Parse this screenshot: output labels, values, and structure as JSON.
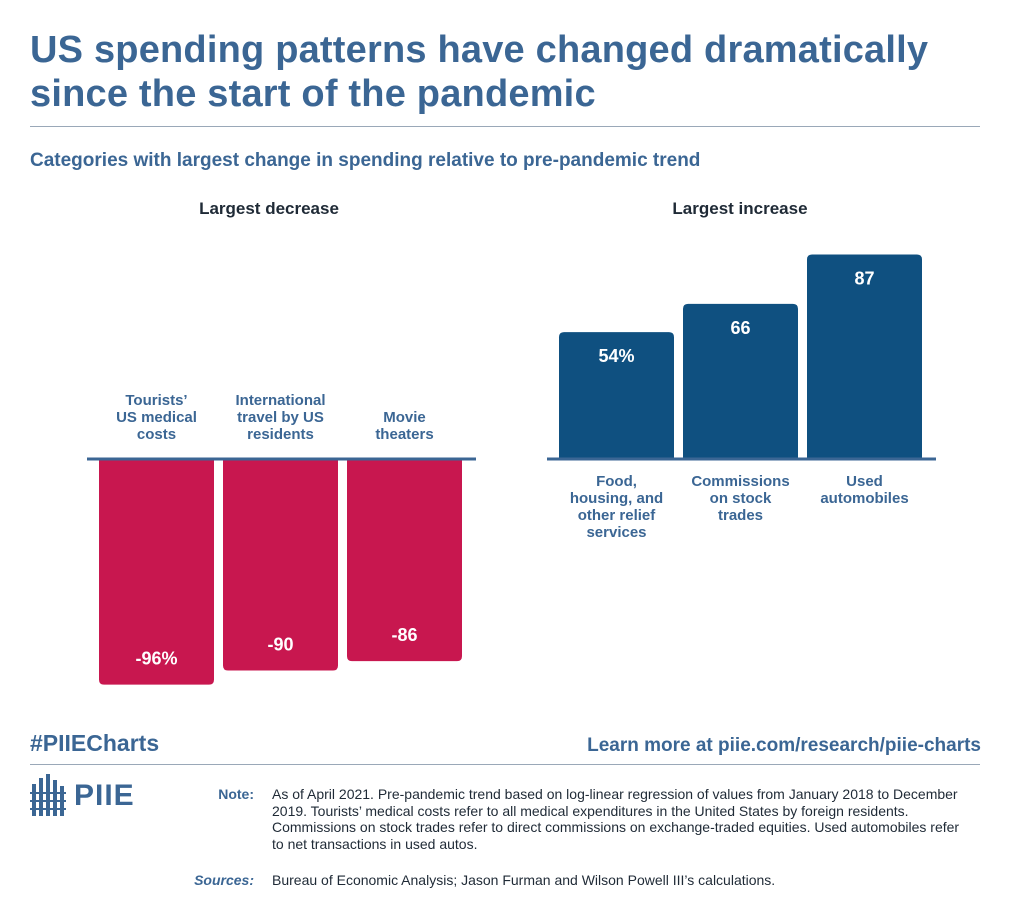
{
  "title": "US spending patterns have changed dramatically since the start of the pandemic",
  "subtitle": "Categories with largest change in spending relative to pre-pandemic trend",
  "colors": {
    "decrease": "#c8174f",
    "increase": "#0f5080",
    "text": "#3b6694",
    "axis": "#3b6694"
  },
  "chart_data": [
    {
      "type": "bar",
      "title": "Largest decrease",
      "categories": [
        "Tourists’ US medical costs",
        "International travel by US residents",
        "Movie theaters"
      ],
      "category_lines": [
        [
          "Tourists’",
          "US medical",
          "costs"
        ],
        [
          "International",
          "travel by US",
          "residents"
        ],
        [
          "Movie",
          "theaters"
        ]
      ],
      "values": [
        -96,
        -90,
        -86
      ],
      "value_labels": [
        "-96%",
        "-90",
        "-86"
      ],
      "unit": "%",
      "ylim": [
        -100,
        0
      ]
    },
    {
      "type": "bar",
      "title": "Largest increase",
      "categories": [
        "Food, housing, and other relief services",
        "Commissions on stock trades",
        "Used automobiles"
      ],
      "category_lines": [
        [
          "Food,",
          "housing, and",
          "other relief",
          "services"
        ],
        [
          "Commissions",
          "on stock",
          "trades"
        ],
        [
          "Used",
          "automobiles"
        ]
      ],
      "values": [
        54,
        66,
        87
      ],
      "value_labels": [
        "54%",
        "66",
        "87"
      ],
      "unit": "%",
      "ylim": [
        0,
        100
      ]
    }
  ],
  "footer": {
    "hashtag": "#PIIECharts",
    "learn_more": "Learn more at piie.com/research/piie-charts",
    "logo_text": "PIIE",
    "note_label": "Note:",
    "note_text": "As of April 2021. Pre-pandemic trend based on log-linear regression of values from January 2018 to December 2019. Tourists’ medical costs refer to all medical expenditures in the United States by foreign residents. Commissions on stock trades refer to direct commissions on exchange-traded equities. Used automobiles refer to net transactions in used autos.",
    "sources_label": "Sources:",
    "sources_text": "Bureau of Economic Analysis; Jason Furman and Wilson Powell III’s calculations."
  }
}
